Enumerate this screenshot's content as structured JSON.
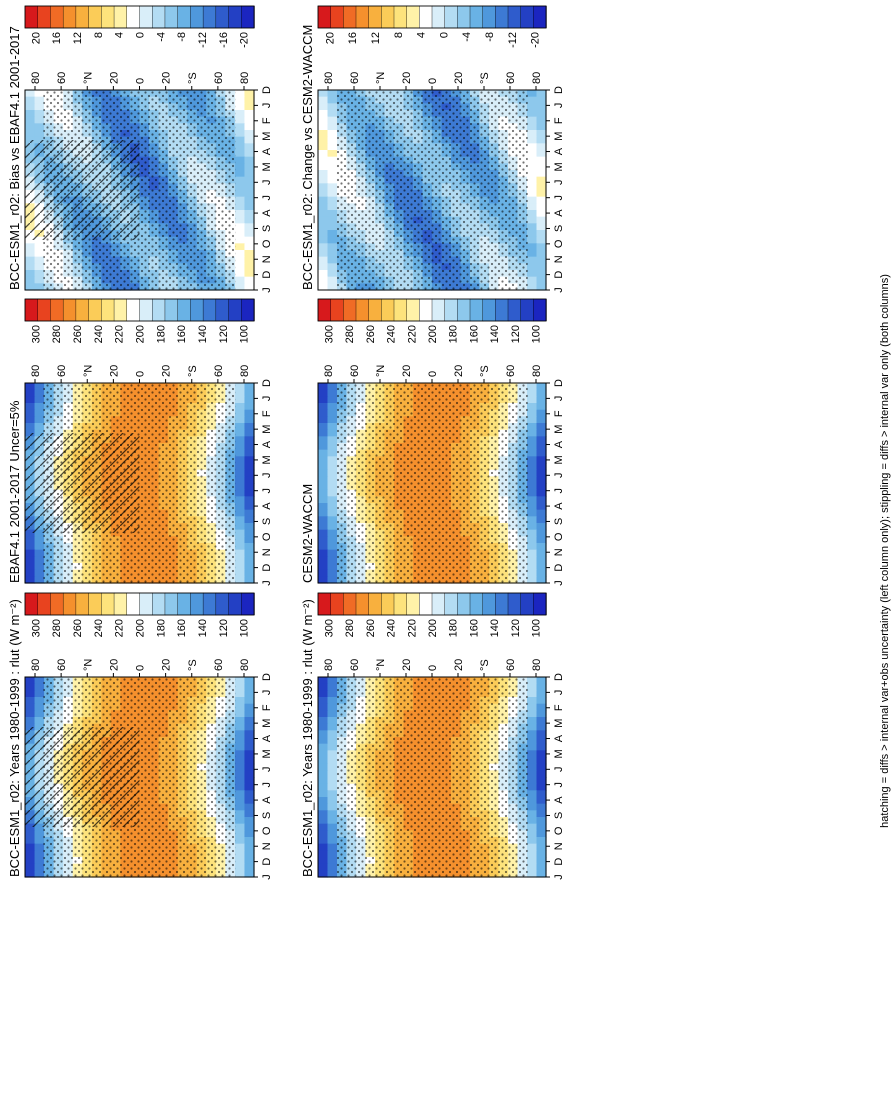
{
  "figure": {
    "footnote": "hatching = diffs > internal var+obs uncertainty (left column only); stippling = diffs > internal var only (both columns)"
  },
  "chart_data": [
    {
      "type": "heatmap",
      "title": "BCC-ESM1_r02: Years 1980-1999 : rlut (W m⁻²)",
      "time_ticks": [
        "D",
        "J",
        "F",
        "M",
        "A",
        "M",
        "J",
        "J",
        "A",
        "S",
        "O",
        "N",
        "D",
        "J"
      ],
      "lat_ticks": [
        "80",
        "60",
        "°N",
        "20",
        "0",
        "20",
        "°S",
        "60",
        "80"
      ],
      "lat_range": [
        -90,
        90
      ],
      "colorbar": {
        "ticks": [
          "300",
          "280",
          "260",
          "240",
          "220",
          "200",
          "180",
          "160",
          "140",
          "120",
          "100"
        ],
        "range": [
          90,
          310
        ]
      },
      "palette": "flux",
      "hatching": true,
      "stippling": true
    },
    {
      "type": "heatmap",
      "title": "EBAF4.1 2001-2017 Uncer=5%",
      "time_ticks": [
        "D",
        "J",
        "F",
        "M",
        "A",
        "M",
        "J",
        "J",
        "A",
        "S",
        "O",
        "N",
        "D",
        "J"
      ],
      "lat_ticks": [
        "80",
        "60",
        "°N",
        "20",
        "0",
        "20",
        "°S",
        "60",
        "80"
      ],
      "lat_range": [
        -90,
        90
      ],
      "colorbar": {
        "ticks": [
          "300",
          "280",
          "260",
          "240",
          "220",
          "200",
          "180",
          "160",
          "140",
          "120",
          "100"
        ],
        "range": [
          90,
          310
        ]
      },
      "palette": "flux",
      "hatching": true,
      "stippling": true
    },
    {
      "type": "heatmap",
      "title": "BCC-ESM1_r02: Bias vs EBAF4.1 2001-2017",
      "time_ticks": [
        "D",
        "J",
        "F",
        "M",
        "A",
        "M",
        "J",
        "J",
        "A",
        "S",
        "O",
        "N",
        "D",
        "J"
      ],
      "lat_ticks": [
        "80",
        "60",
        "°N",
        "20",
        "0",
        "20",
        "°S",
        "60",
        "80"
      ],
      "lat_range": [
        -90,
        90
      ],
      "colorbar": {
        "ticks": [
          "20",
          "16",
          "12",
          "8",
          "4",
          "0",
          "-4",
          "-8",
          "-12",
          "-16",
          "-20"
        ],
        "range": [
          -22,
          22
        ]
      },
      "palette": "diff",
      "hatching": true,
      "stippling": true
    },
    {
      "type": "heatmap",
      "title": "BCC-ESM1_r02: Years 1980-1999 : rlut (W m⁻²)",
      "time_ticks": [
        "D",
        "J",
        "F",
        "M",
        "A",
        "M",
        "J",
        "J",
        "A",
        "S",
        "O",
        "N",
        "D",
        "J"
      ],
      "lat_ticks": [
        "80",
        "60",
        "°N",
        "20",
        "0",
        "20",
        "°S",
        "60",
        "80"
      ],
      "lat_range": [
        -90,
        90
      ],
      "colorbar": {
        "ticks": [
          "300",
          "280",
          "260",
          "240",
          "220",
          "200",
          "180",
          "160",
          "140",
          "120",
          "100"
        ],
        "range": [
          90,
          310
        ]
      },
      "palette": "flux",
      "hatching": false,
      "stippling": true
    },
    {
      "type": "heatmap",
      "title": "CESM2-WACCM",
      "time_ticks": [
        "D",
        "J",
        "F",
        "M",
        "A",
        "M",
        "J",
        "J",
        "A",
        "S",
        "O",
        "N",
        "D",
        "J"
      ],
      "lat_ticks": [
        "80",
        "60",
        "°N",
        "20",
        "0",
        "20",
        "°S",
        "60",
        "80"
      ],
      "lat_range": [
        -90,
        90
      ],
      "colorbar": {
        "ticks": [
          "300",
          "280",
          "260",
          "240",
          "220",
          "200",
          "180",
          "160",
          "140",
          "120",
          "100"
        ],
        "range": [
          90,
          310
        ]
      },
      "palette": "flux",
      "hatching": false,
      "stippling": true
    },
    {
      "type": "heatmap",
      "title": "BCC-ESM1_r02: Change vs CESM2-WACCM",
      "time_ticks": [
        "D",
        "J",
        "F",
        "M",
        "A",
        "M",
        "J",
        "J",
        "A",
        "S",
        "O",
        "N",
        "D",
        "J"
      ],
      "lat_ticks": [
        "80",
        "60",
        "°N",
        "20",
        "0",
        "20",
        "°S",
        "60",
        "80"
      ],
      "lat_range": [
        -90,
        90
      ],
      "colorbar": {
        "ticks": [
          "20",
          "16",
          "12",
          "8",
          "4",
          "0",
          "-4",
          "-8",
          "-12",
          "-20"
        ],
        "range": [
          -22,
          22
        ]
      },
      "palette": "diff",
      "hatching": false,
      "stippling": true
    }
  ],
  "palettes": {
    "flux": [
      "#d7191c",
      "#e8431f",
      "#f06b25",
      "#f5902d",
      "#f8b03e",
      "#fbcc58",
      "#fde37c",
      "#fff2a8",
      "#ffffff",
      "#d9eef9",
      "#b3dcf3",
      "#8dc8ec",
      "#69b2e5",
      "#4f98dc",
      "#3d7ad4",
      "#2f5ccc",
      "#2340c4",
      "#1b25c0"
    ],
    "diff": [
      "#d7191c",
      "#e8431f",
      "#f06b25",
      "#f5902d",
      "#f8b03e",
      "#fbcc58",
      "#fde37c",
      "#fff2a8",
      "#ffffff",
      "#d9eef9",
      "#b3dcf3",
      "#8dc8ec",
      "#69b2e5",
      "#4f98dc",
      "#3d7ad4",
      "#2f5ccc",
      "#2340c4",
      "#1b25c0"
    ]
  }
}
